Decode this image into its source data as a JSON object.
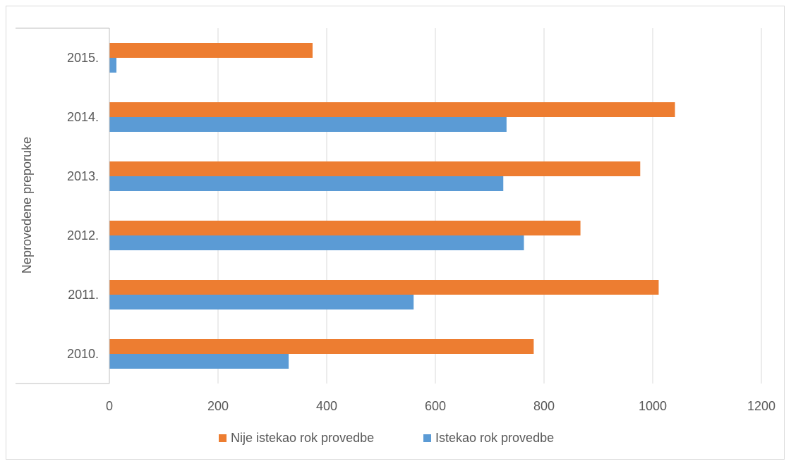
{
  "chart_data": {
    "type": "bar",
    "orientation": "horizontal",
    "title": "",
    "xlabel": "",
    "ylabel": "Neprovedene preporuke",
    "categories": [
      "2010.",
      "2011.",
      "2012.",
      "2013.",
      "2014.",
      "2015."
    ],
    "series": [
      {
        "name": "Nije istekao rok provedbe",
        "color": "#ED7D31",
        "values": [
          781,
          1011,
          867,
          977,
          1041,
          374
        ]
      },
      {
        "name": "Istekao rok provedbe",
        "color": "#5B9BD5",
        "values": [
          330,
          560,
          763,
          725,
          731,
          13
        ]
      }
    ],
    "xlim": [
      0,
      1200
    ],
    "xticks": [
      "0",
      "200",
      "400",
      "600",
      "800",
      "1000",
      "1200"
    ],
    "grid": true,
    "legend_position": "bottom"
  }
}
